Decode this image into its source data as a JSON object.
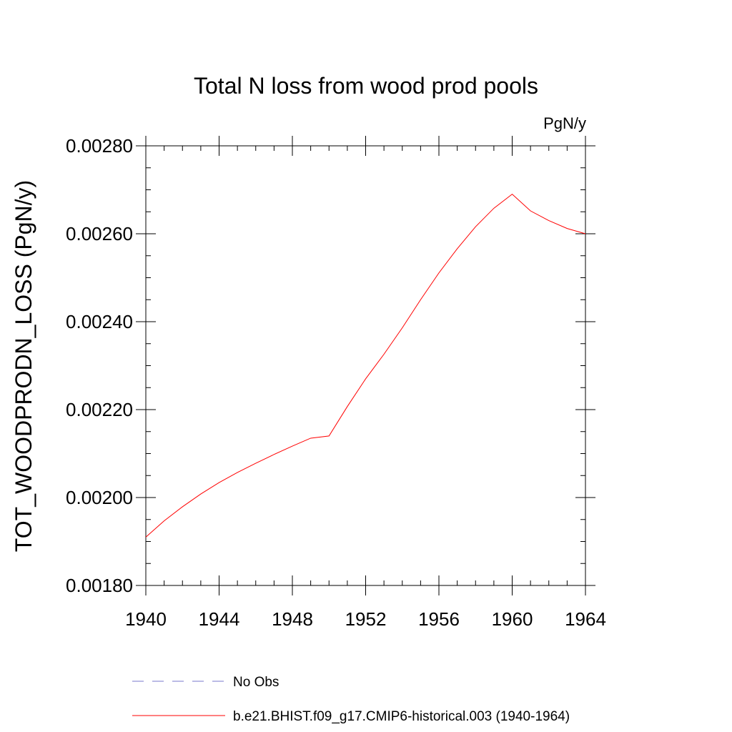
{
  "chart_data": {
    "type": "line",
    "title": "Total N loss from wood prod pools",
    "units": "PgN/y",
    "ylabel": "TOT_WOODPRODN_LOSS  (PgN/y)",
    "xlabel": "",
    "xlim": [
      1940,
      1964
    ],
    "ylim": [
      0.0018,
      0.0028
    ],
    "x_ticks": [
      1940,
      1944,
      1948,
      1952,
      1956,
      1960,
      1964
    ],
    "x_tick_labels": [
      "1940",
      "1944",
      "1948",
      "1952",
      "1956",
      "1960",
      "1964"
    ],
    "y_ticks": [
      0.0018,
      0.002,
      0.0022,
      0.0024,
      0.0026,
      0.0028
    ],
    "y_tick_labels": [
      "0.00180",
      "0.00200",
      "0.00220",
      "0.00240",
      "0.00260",
      "0.00280"
    ],
    "grid": false,
    "legend_position": "bottom",
    "series": [
      {
        "name": "No Obs",
        "color": "#7777cc",
        "dash": "dashed",
        "values": []
      },
      {
        "name": "b.e21.BHIST.f09_g17.CMIP6-historical.003 (1940-1964)",
        "color": "#ff0000",
        "dash": "solid",
        "x": [
          1940,
          1941,
          1942,
          1943,
          1944,
          1945,
          1946,
          1947,
          1948,
          1949,
          1950,
          1951,
          1952,
          1953,
          1954,
          1955,
          1956,
          1957,
          1958,
          1959,
          1960,
          1961,
          1962,
          1963,
          1964
        ],
        "values": [
          0.00191,
          0.001947,
          0.001979,
          0.002008,
          0.002034,
          0.002057,
          0.002078,
          0.002098,
          0.002117,
          0.002135,
          0.00214,
          0.002207,
          0.00227,
          0.002326,
          0.002386,
          0.00245,
          0.002511,
          0.002566,
          0.002616,
          0.002658,
          0.00269,
          0.002652,
          0.00263,
          0.002612,
          0.0026
        ]
      }
    ]
  }
}
